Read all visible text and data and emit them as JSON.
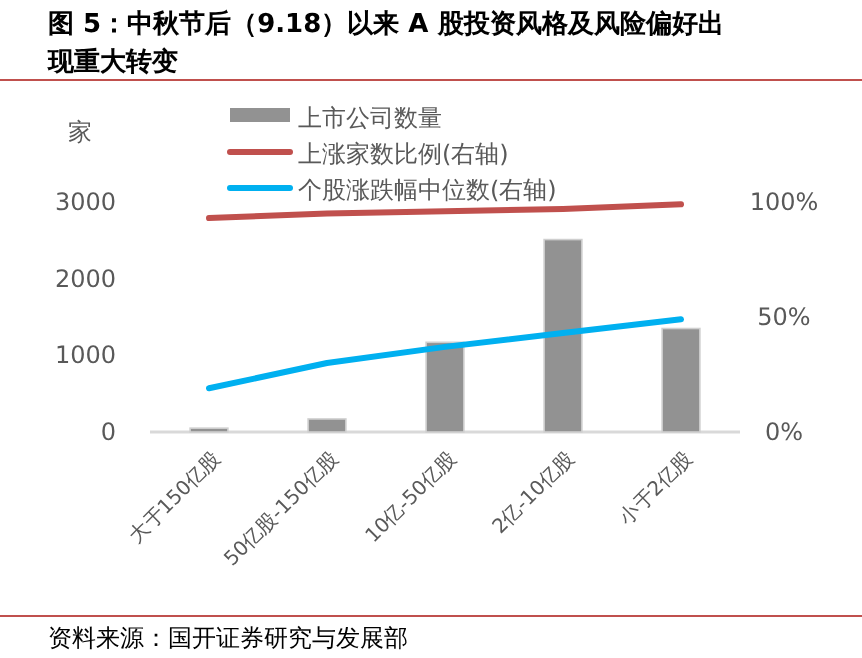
{
  "chart_data": {
    "type": "bar",
    "title": "图 5：中秋节后（9.18）以来 A 股投资风格及风险偏好出现重大转变",
    "ylabel": "家",
    "categories": [
      "大于150亿股",
      "50亿股-150亿股",
      "10亿-50亿股",
      "2亿-10亿股",
      "小于2亿股"
    ],
    "series": [
      {
        "name": "上市公司数量",
        "color": "#929292",
        "values": [
          50,
          170,
          1170,
          2510,
          1350
        ]
      },
      {
        "name": "上涨家数比例(右轴)",
        "type": "line",
        "axis": "y2",
        "color": "#c0504d",
        "values": [
          0.93,
          0.95,
          0.96,
          0.97,
          0.99
        ]
      },
      {
        "name": "个股涨跌幅中位数(右轴)",
        "type": "line",
        "axis": "y2",
        "color": "#00b0f0",
        "values": [
          0.19,
          0.3,
          0.37,
          0.43,
          0.49
        ]
      }
    ],
    "ylim": [
      0,
      3000
    ],
    "yticks": [
      0,
      1000,
      2000,
      3000
    ],
    "y2lim": [
      0,
      1
    ],
    "y2ticks": [
      {
        "value": 0,
        "label": "0%"
      },
      {
        "value": 0.5,
        "label": "50%"
      },
      {
        "value": 1,
        "label": "100%"
      }
    ],
    "legend": "top",
    "grid": false,
    "annotations": [
      "资料来源：国开证券研究与发展部"
    ]
  }
}
